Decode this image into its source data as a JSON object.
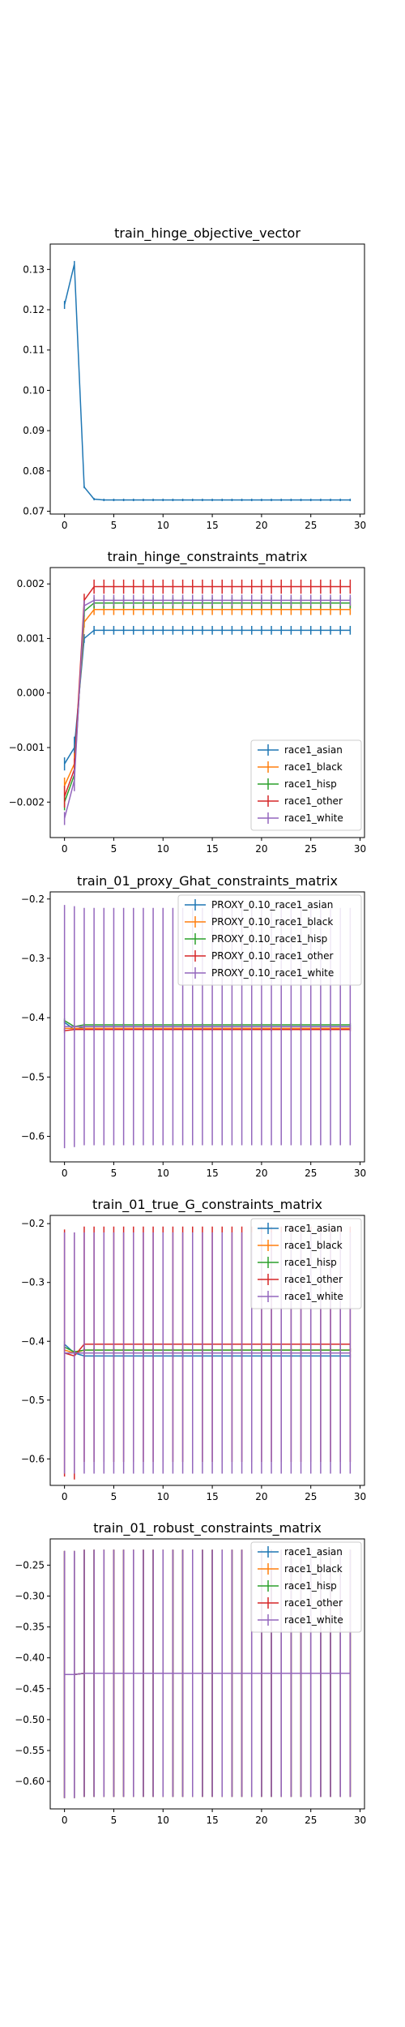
{
  "colors": {
    "series": [
      "#1f77b4",
      "#ff7f0e",
      "#2ca02c",
      "#d62728",
      "#9467bd"
    ],
    "axes": "#000000",
    "background": "#ffffff"
  },
  "chart_data": [
    {
      "type": "line",
      "title": "train_hinge_objective_vector",
      "xlabel": "",
      "ylabel": "",
      "xlim": [
        -1.45,
        30.45
      ],
      "ylim": [
        0.0693,
        0.1363
      ],
      "xticks": [
        0,
        5,
        10,
        15,
        20,
        25,
        30
      ],
      "yticks": [
        0.07,
        0.08,
        0.09,
        0.1,
        0.11,
        0.12,
        0.13
      ],
      "ytick_labels": [
        "0.07",
        "0.08",
        "0.09",
        "0.10",
        "0.11",
        "0.12",
        "0.13"
      ],
      "grid": false,
      "legend": null,
      "x": [
        0,
        1,
        2,
        3,
        4,
        5,
        6,
        7,
        8,
        9,
        10,
        11,
        12,
        13,
        14,
        15,
        16,
        17,
        18,
        19,
        20,
        21,
        22,
        23,
        24,
        25,
        26,
        27,
        28,
        29
      ],
      "series": [
        {
          "values": [
            0.1212,
            0.1313,
            0.076,
            0.073,
            0.0728,
            0.0728,
            0.0728,
            0.0728,
            0.0728,
            0.0728,
            0.0728,
            0.0728,
            0.0728,
            0.0728,
            0.0728,
            0.0728,
            0.0728,
            0.0728,
            0.0728,
            0.0728,
            0.0728,
            0.0728,
            0.0728,
            0.0728,
            0.0728,
            0.0728,
            0.0728,
            0.0728,
            0.0728,
            0.0728
          ],
          "err": [
            0.001,
            0.0008,
            0.0003,
            0.0003,
            0.0003,
            0.0003,
            0.0003,
            0.0003,
            0.0003,
            0.0003,
            0.0003,
            0.0003,
            0.0003,
            0.0003,
            0.0003,
            0.0003,
            0.0003,
            0.0003,
            0.0003,
            0.0003,
            0.0003,
            0.0003,
            0.0003,
            0.0003,
            0.0003,
            0.0003,
            0.0003,
            0.0003,
            0.0003,
            0.0003
          ]
        }
      ]
    },
    {
      "type": "line",
      "title": "train_hinge_constraints_matrix",
      "xlabel": "",
      "ylabel": "",
      "xlim": [
        -1.45,
        30.45
      ],
      "ylim": [
        -0.00265,
        0.0023
      ],
      "xticks": [
        0,
        5,
        10,
        15,
        20,
        25,
        30
      ],
      "yticks": [
        -0.002,
        -0.001,
        0.0,
        0.001,
        0.002
      ],
      "ytick_labels": [
        "−0.002",
        "−0.001",
        "0.000",
        "0.001",
        "0.002"
      ],
      "grid": false,
      "legend": "lower right",
      "x": [
        0,
        1,
        2,
        3,
        4,
        5,
        6,
        7,
        8,
        9,
        10,
        11,
        12,
        13,
        14,
        15,
        16,
        17,
        18,
        19,
        20,
        21,
        22,
        23,
        24,
        25,
        26,
        27,
        28,
        29
      ],
      "series": [
        {
          "name": "race1_asian",
          "start": [
            -0.0013,
            -0.001,
            0.001
          ],
          "level": 0.00115,
          "err": 8e-05,
          "start_err": [
            0.00012,
            0.0002,
            8e-05
          ]
        },
        {
          "name": "race1_black",
          "start": [
            -0.0017,
            -0.0013,
            0.0013
          ],
          "level": 0.00153,
          "err": 0.0001,
          "start_err": [
            0.00015,
            0.0002,
            0.0001
          ]
        },
        {
          "name": "race1_hisp",
          "start": [
            -0.002,
            -0.0015,
            0.0015
          ],
          "level": 0.00165,
          "err": 0.0001,
          "start_err": [
            0.00015,
            0.0002,
            0.0001
          ]
        },
        {
          "name": "race1_other",
          "start": [
            -0.0019,
            -0.0014,
            0.0017
          ],
          "level": 0.00195,
          "err": 0.00013,
          "start_err": [
            0.0002,
            0.0002,
            0.00012
          ]
        },
        {
          "name": "race1_white",
          "start": [
            -0.0023,
            -0.0016,
            0.0016
          ],
          "level": 0.0017,
          "err": 0.0001,
          "start_err": [
            0.00012,
            0.0002,
            0.0001
          ]
        }
      ]
    },
    {
      "type": "line",
      "title": "train_01_proxy_Ghat_constraints_matrix",
      "xlabel": "",
      "ylabel": "",
      "xlim": [
        -1.45,
        30.45
      ],
      "ylim": [
        -0.643,
        -0.188
      ],
      "xticks": [
        0,
        5,
        10,
        15,
        20,
        25,
        30
      ],
      "yticks": [
        -0.6,
        -0.5,
        -0.4,
        -0.3,
        -0.2
      ],
      "ytick_labels": [
        "−0.6",
        "−0.5",
        "−0.4",
        "−0.3",
        "−0.2"
      ],
      "grid": false,
      "legend": "upper right",
      "x": [
        0,
        1,
        2,
        3,
        4,
        5,
        6,
        7,
        8,
        9,
        10,
        11,
        12,
        13,
        14,
        15,
        16,
        17,
        18,
        19,
        20,
        21,
        22,
        23,
        24,
        25,
        26,
        27,
        28,
        29
      ],
      "series": [
        {
          "name": "PROXY_0.10_race1_asian",
          "start": [
            -0.408,
            -0.42,
            -0.415
          ],
          "level": -0.415,
          "err": 0.003,
          "start_err": [
            0.005,
            0.004,
            0.003
          ]
        },
        {
          "name": "PROXY_0.10_race1_black",
          "start": [
            -0.418,
            -0.418,
            -0.418
          ],
          "level": -0.418,
          "err": 0.003,
          "start_err": [
            0.004,
            0.004,
            0.003
          ]
        },
        {
          "name": "PROXY_0.10_race1_hisp",
          "start": [
            -0.405,
            -0.415,
            -0.412
          ],
          "level": -0.412,
          "err": 0.003,
          "start_err": [
            0.004,
            0.004,
            0.003
          ]
        },
        {
          "name": "PROXY_0.10_race1_other",
          "start": [
            -0.422,
            -0.42,
            -0.42
          ],
          "level": -0.42,
          "err": 0.003,
          "start_err": [
            0.004,
            0.004,
            0.003
          ]
        },
        {
          "name": "PROXY_0.10_race1_white",
          "start": [
            -0.415,
            -0.415,
            -0.415
          ],
          "level": -0.415,
          "err": 0.2,
          "start_err": [
            0.205,
            0.203,
            0.2
          ]
        }
      ]
    },
    {
      "type": "line",
      "title": "train_01_true_G_constraints_matrix",
      "xlabel": "",
      "ylabel": "",
      "xlim": [
        -1.45,
        30.45
      ],
      "ylim": [
        -0.645,
        -0.186
      ],
      "xticks": [
        0,
        5,
        10,
        15,
        20,
        25,
        30
      ],
      "yticks": [
        -0.6,
        -0.5,
        -0.4,
        -0.3,
        -0.2
      ],
      "ytick_labels": [
        "−0.6",
        "−0.5",
        "−0.4",
        "−0.3",
        "−0.2"
      ],
      "grid": false,
      "legend": "upper right",
      "x": [
        0,
        1,
        2,
        3,
        4,
        5,
        6,
        7,
        8,
        9,
        10,
        11,
        12,
        13,
        14,
        15,
        16,
        17,
        18,
        19,
        20,
        21,
        22,
        23,
        24,
        25,
        26,
        27,
        28,
        29
      ],
      "series": [
        {
          "name": "race1_asian",
          "start": [
            -0.405,
            -0.42,
            -0.425
          ],
          "level": -0.425,
          "err": 0.003,
          "start_err": [
            0.005,
            0.004,
            0.003
          ]
        },
        {
          "name": "race1_black",
          "start": [
            -0.415,
            -0.42,
            -0.415
          ],
          "level": -0.415,
          "err": 0.003,
          "start_err": [
            0.004,
            0.004,
            0.003
          ]
        },
        {
          "name": "race1_hisp",
          "start": [
            -0.41,
            -0.418,
            -0.415
          ],
          "level": -0.415,
          "err": 0.003,
          "start_err": [
            0.004,
            0.004,
            0.003
          ]
        },
        {
          "name": "race1_other",
          "start": [
            -0.42,
            -0.425,
            -0.405
          ],
          "level": -0.405,
          "err": 0.2,
          "start_err": [
            0.21,
            0.21,
            0.2
          ]
        },
        {
          "name": "race1_white",
          "start": [
            -0.42,
            -0.42,
            -0.42
          ],
          "level": -0.42,
          "err": 0.205,
          "start_err": [
            0.205,
            0.205,
            0.205
          ]
        }
      ]
    },
    {
      "type": "line",
      "title": "train_01_robust_constraints_matrix",
      "xlabel": "",
      "ylabel": "",
      "xlim": [
        -1.45,
        30.45
      ],
      "ylim": [
        -0.6445,
        -0.2075
      ],
      "xticks": [
        0,
        5,
        10,
        15,
        20,
        25,
        30
      ],
      "yticks": [
        -0.6,
        -0.55,
        -0.5,
        -0.45,
        -0.4,
        -0.35,
        -0.3,
        -0.25
      ],
      "ytick_labels": [
        "−0.60",
        "−0.55",
        "−0.50",
        "−0.45",
        "−0.40",
        "−0.35",
        "−0.30",
        "−0.25"
      ],
      "grid": false,
      "legend": "upper right",
      "x": [
        0,
        1,
        2,
        3,
        4,
        5,
        6,
        7,
        8,
        9,
        10,
        11,
        12,
        13,
        14,
        15,
        16,
        17,
        18,
        19,
        20,
        21,
        22,
        23,
        24,
        25,
        26,
        27,
        28,
        29
      ],
      "series": [
        {
          "name": "race1_asian",
          "start": [
            -0.427,
            -0.427,
            -0.425
          ],
          "level": -0.425,
          "err": 0.2,
          "start_err": [
            0.2,
            0.2,
            0.2
          ]
        },
        {
          "name": "race1_black",
          "start": [
            -0.427,
            -0.427,
            -0.425
          ],
          "level": -0.425,
          "err": 0.2,
          "start_err": [
            0.2,
            0.2,
            0.2
          ]
        },
        {
          "name": "race1_hisp",
          "start": [
            -0.427,
            -0.427,
            -0.425
          ],
          "level": -0.425,
          "err": 0.2,
          "start_err": [
            0.2,
            0.2,
            0.2
          ]
        },
        {
          "name": "race1_other",
          "start": [
            -0.427,
            -0.427,
            -0.425
          ],
          "level": -0.425,
          "err": 0.2,
          "start_err": [
            0.2,
            0.2,
            0.2
          ]
        },
        {
          "name": "race1_white",
          "start": [
            -0.427,
            -0.427,
            -0.425
          ],
          "level": -0.425,
          "err": 0.2,
          "start_err": [
            0.2,
            0.2,
            0.2
          ]
        }
      ]
    }
  ]
}
